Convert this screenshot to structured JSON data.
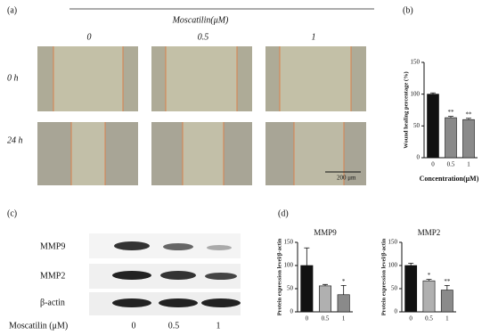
{
  "panel_a": {
    "label": "(a)",
    "treatment": "Moscatilin(μM)",
    "columns": [
      "0",
      "0.5",
      "1"
    ],
    "rows": [
      "0 h",
      "24 h"
    ],
    "scale_bar": "200 μm"
  },
  "panel_b": {
    "label": "(b)"
  },
  "panel_c": {
    "label": "(c)",
    "bands": [
      "MMP9",
      "MMP2",
      "β-actin"
    ],
    "treatment": "Moscatilin (μM)",
    "lanes": [
      "0",
      "0.5",
      "1"
    ]
  },
  "panel_d": {
    "label": "(d)"
  },
  "chart_data": [
    {
      "type": "bar",
      "ylabel": "Wound healing percentage (%)",
      "xlabel": "Concentration(μM)",
      "categories": [
        "0",
        "0.5",
        "1"
      ],
      "values": [
        100,
        63,
        60
      ],
      "errors": [
        2,
        2,
        2
      ],
      "colors": [
        "#111111",
        "#8a8a8a",
        "#8a8a8a"
      ],
      "annotations": [
        null,
        "**",
        "**"
      ],
      "ylim": [
        0,
        150
      ],
      "yticks": [
        0,
        50,
        100,
        150
      ]
    },
    {
      "type": "bar",
      "title": "MMP9",
      "ylabel": "Protein expression level/β-actin",
      "categories": [
        "0",
        "0.5",
        "1"
      ],
      "values": [
        100,
        56,
        37
      ],
      "errors": [
        38,
        3,
        20
      ],
      "colors": [
        "#111111",
        "#b0b0b0",
        "#8a8a8a"
      ],
      "annotations": [
        null,
        null,
        "*"
      ],
      "ylim": [
        0,
        150
      ],
      "yticks": [
        0,
        50,
        100,
        150
      ]
    },
    {
      "type": "bar",
      "title": "MMP2",
      "ylabel": "Protein expression level/β-actin",
      "categories": [
        "0",
        "0.5",
        "1"
      ],
      "values": [
        100,
        67,
        47
      ],
      "errors": [
        5,
        3,
        10
      ],
      "colors": [
        "#111111",
        "#b0b0b0",
        "#8a8a8a"
      ],
      "annotations": [
        null,
        "*",
        "**"
      ],
      "ylim": [
        0,
        150
      ],
      "yticks": [
        0,
        50,
        100,
        150
      ]
    }
  ]
}
